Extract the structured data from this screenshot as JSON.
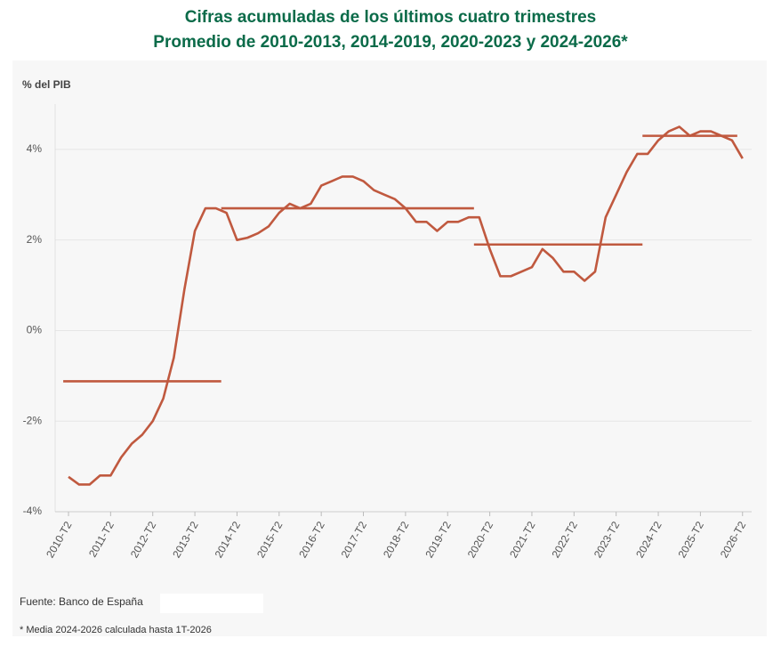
{
  "chart_data": {
    "type": "line",
    "title": "Cifras acumuladas de los últimos cuatro trimestres",
    "subtitle": "Promedio de 2010-2013, 2014-2019, 2020-2023 y 2024-2026*",
    "y_label": "% del PIB",
    "source": "Fuente: Banco de España",
    "note": "* Media 2024-2026 calculada hasta 1T-2026",
    "categories": [
      "2010-T2",
      null,
      null,
      null,
      "2011-T2",
      null,
      null,
      null,
      "2012-T2",
      null,
      null,
      null,
      "2013-T2",
      null,
      null,
      null,
      "2014-T2",
      null,
      null,
      null,
      "2015-T2",
      null,
      null,
      null,
      "2016-T2",
      null,
      null,
      null,
      "2017-T2",
      null,
      null,
      null,
      "2018-T2",
      null,
      null,
      null,
      "2019-T2",
      null,
      null,
      null,
      "2020-T2",
      null,
      null,
      null,
      "2021-T2",
      null,
      null,
      null,
      "2022-T2",
      null,
      null,
      null,
      "2023-T2",
      null,
      null,
      null,
      "2024-T2",
      null,
      null,
      null,
      "2025-T2",
      null,
      null,
      null,
      "2026-T2"
    ],
    "series": [
      {
        "color": "#c0593f",
        "values": [
          -3.23,
          -3.4,
          -3.4,
          -3.2,
          -3.2,
          -2.8,
          -2.5,
          -2.3,
          -2.0,
          -1.5,
          -0.6,
          0.9,
          2.2,
          2.7,
          2.7,
          2.6,
          2.0,
          2.05,
          2.15,
          2.3,
          2.6,
          2.8,
          2.7,
          2.8,
          3.2,
          3.3,
          3.4,
          3.4,
          3.3,
          3.1,
          3.0,
          2.9,
          2.7,
          2.4,
          2.4,
          2.2,
          2.4,
          2.4,
          2.5,
          2.5,
          1.8,
          1.2,
          1.2,
          1.3,
          1.4,
          1.8,
          1.6,
          1.3,
          1.3,
          1.1,
          1.3,
          2.5,
          3.0,
          3.5,
          3.9,
          3.9,
          4.2,
          4.4,
          4.5,
          4.3,
          4.4,
          4.4,
          4.3,
          4.2,
          3.8
        ]
      },
      {
        "color": "#c0593f",
        "values": [
          -1.12,
          -1.12,
          -1.12,
          -1.12,
          -1.12,
          -1.12,
          -1.12,
          -1.12,
          -1.12,
          -1.12,
          -1.12,
          -1.12,
          -1.12,
          -1.12,
          -1.12,
          2.7,
          2.7,
          2.7,
          2.7,
          2.7,
          2.7,
          2.7,
          2.7,
          2.7,
          2.7,
          2.7,
          2.7,
          2.7,
          2.7,
          2.7,
          2.7,
          2.7,
          2.7,
          2.7,
          2.7,
          2.7,
          2.7,
          2.7,
          2.7,
          1.9,
          1.9,
          1.9,
          1.9,
          1.9,
          1.9,
          1.9,
          1.9,
          1.9,
          1.9,
          1.9,
          1.9,
          1.9,
          1.9,
          1.9,
          1.9,
          4.3,
          4.3,
          4.3,
          4.3,
          4.3,
          4.3,
          4.3,
          4.3,
          4.3,
          null
        ]
      }
    ],
    "ylim": [
      -4,
      5
    ],
    "yticks": [
      {
        "value": -4,
        "label": "-4%"
      },
      {
        "value": -2,
        "label": "-2%"
      },
      {
        "value": 0,
        "label": "0%"
      },
      {
        "value": 2,
        "label": "2%"
      },
      {
        "value": 4,
        "label": "4%"
      }
    ],
    "grid": true
  }
}
